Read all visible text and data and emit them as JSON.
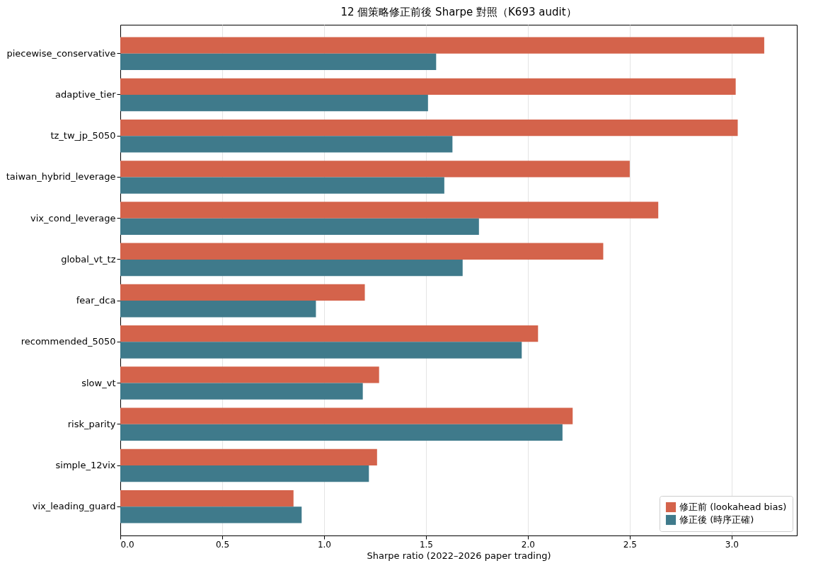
{
  "chart_data": {
    "type": "bar",
    "orientation": "horizontal",
    "title": "12 個策略修正前後 Sharpe 對照（K693 audit）",
    "xlabel": "Sharpe ratio (2022–2026 paper trading)",
    "categories": [
      "piecewise_conservative",
      "adaptive_tier",
      "tz_tw_jp_5050",
      "taiwan_hybrid_leverage",
      "vix_cond_leverage",
      "global_vt_tz",
      "fear_dca",
      "recommended_5050",
      "slow_vt",
      "risk_parity",
      "simple_12vix",
      "vix_leading_guard"
    ],
    "series": [
      {
        "name": "修正前 (lookahead bias)",
        "color": "#d4634b",
        "values": [
          3.16,
          3.02,
          3.03,
          2.5,
          2.64,
          2.37,
          1.2,
          2.05,
          1.27,
          2.22,
          1.26,
          0.85
        ]
      },
      {
        "name": "修正後 (時序正確)",
        "color": "#3f7a8b",
        "values": [
          1.55,
          1.51,
          1.63,
          1.59,
          1.76,
          1.68,
          0.96,
          1.97,
          1.19,
          2.17,
          1.22,
          0.89
        ]
      }
    ],
    "xlim": [
      0,
      3.32
    ],
    "xticks": [
      {
        "value": 0,
        "label": "0.0"
      },
      {
        "value": 0.5,
        "label": "0.5"
      },
      {
        "value": 1,
        "label": "1.0"
      },
      {
        "value": 1.5,
        "label": "1.5"
      },
      {
        "value": 2,
        "label": "2.0"
      },
      {
        "value": 2.5,
        "label": "2.5"
      },
      {
        "value": 3,
        "label": "3.0"
      }
    ],
    "grid": "x",
    "legend": "bottom right"
  }
}
